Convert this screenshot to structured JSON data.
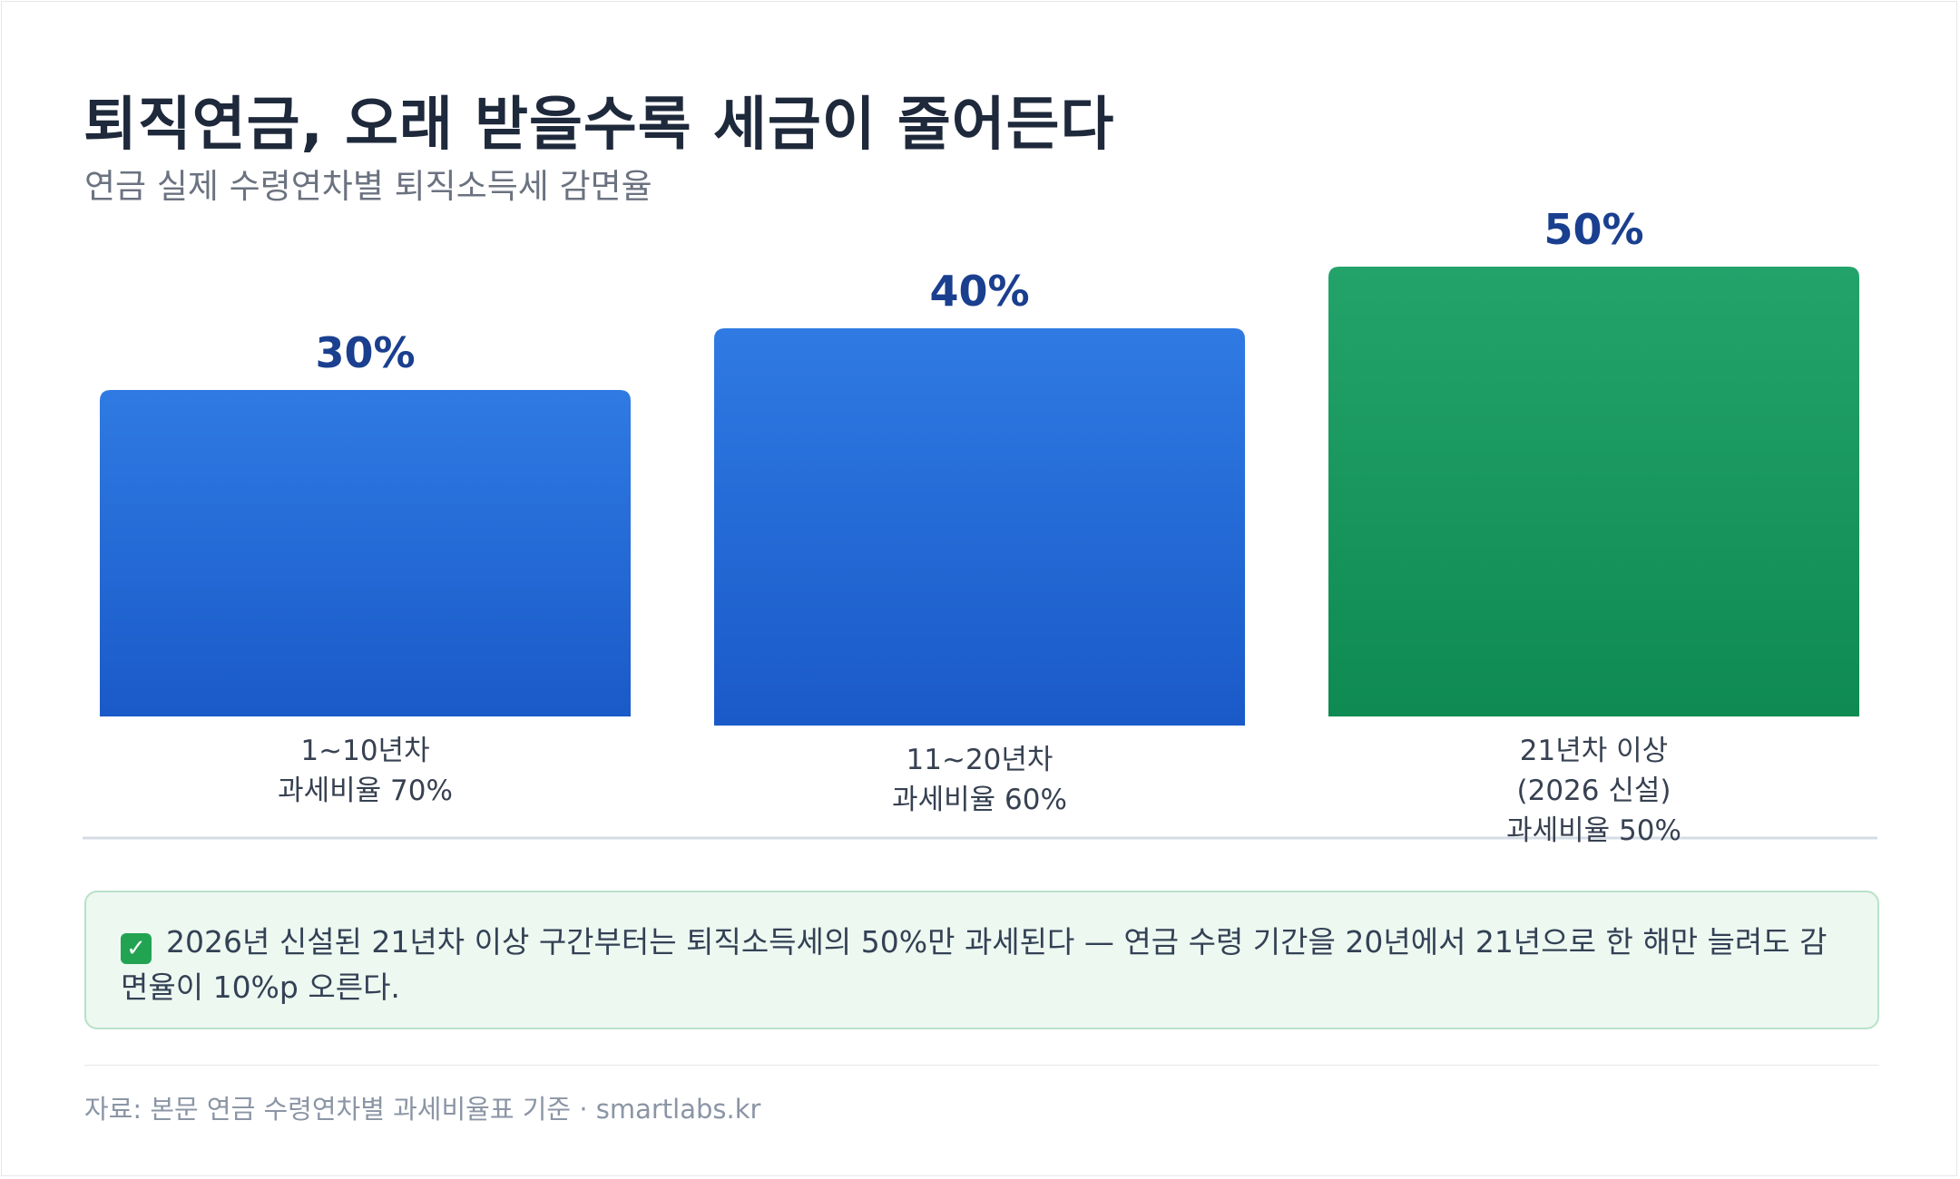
{
  "header": {
    "title": "퇴직연금, 오래 받을수록 세금이 줄어든다",
    "subtitle": "연금 실제 수령연차별 퇴직소득세 감면율"
  },
  "chart_data": {
    "type": "bar",
    "categories": [
      [
        "1~10년차",
        "과세비율 70%"
      ],
      [
        "11~20년차",
        "과세비율 60%"
      ],
      [
        "21년차 이상",
        "(2026 신설)",
        "과세비율 50%"
      ]
    ],
    "values": [
      30,
      40,
      50
    ],
    "value_labels": [
      "30%",
      "40%",
      "50%"
    ],
    "ylim": [
      0,
      50
    ],
    "grid": false,
    "legend": "none",
    "colors": [
      "#2f7ae3",
      "#2f7ae3",
      "#23a36a"
    ]
  },
  "callout": {
    "icon": "check-mark-icon",
    "text": "2026년 신설된 21년차 이상 구간부터는 퇴직소득세의 50%만 과세된다 — 연금 수령 기간을 20년에서 21년으로 한 해만 늘려도 감면율이 10%p 오른다."
  },
  "footer": {
    "source": "자료: 본문 연금 수령연차별 과세비율표 기준 · smartlabs.kr"
  }
}
